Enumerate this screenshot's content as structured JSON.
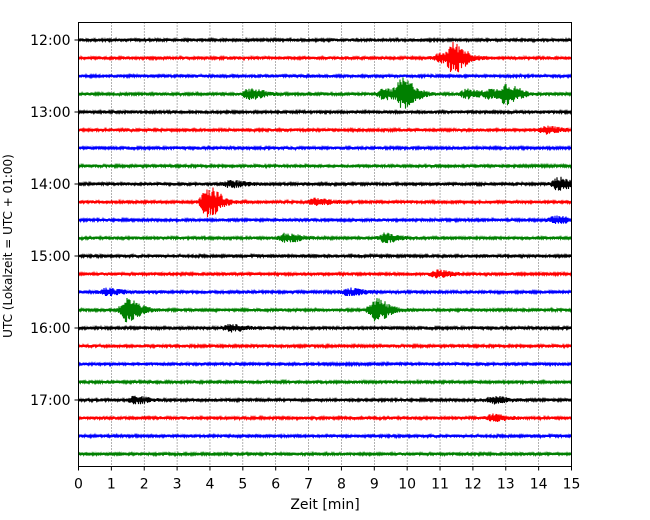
{
  "chart_data": {
    "type": "line",
    "title": "",
    "xlabel": "Zeit  [min]",
    "ylabel": "UTC (Lokalzeit = UTC + 01:00)",
    "xlim": [
      0,
      15
    ],
    "x_ticks": [
      "0",
      "1",
      "2",
      "3",
      "4",
      "5",
      "6",
      "7",
      "8",
      "9",
      "10",
      "11",
      "12",
      "13",
      "14",
      "15"
    ],
    "y_tick_labels": [
      "12:00",
      "13:00",
      "14:00",
      "15:00",
      "16:00",
      "17:00"
    ],
    "grid": "vertical dotted",
    "colors": [
      "#000000",
      "#ff0000",
      "#0000ff",
      "#008000"
    ],
    "traces": [
      {
        "start": "12:00",
        "color": "#000000",
        "events": []
      },
      {
        "start": "12:15",
        "color": "#ff0000",
        "events": [
          {
            "t": 11.4,
            "amp": 13
          },
          {
            "t": 11.0,
            "amp": 4
          }
        ]
      },
      {
        "start": "12:30",
        "color": "#0000ff",
        "events": []
      },
      {
        "start": "12:45",
        "color": "#008000",
        "events": [
          {
            "t": 9.85,
            "amp": 14
          },
          {
            "t": 13.0,
            "amp": 9
          },
          {
            "t": 5.2,
            "amp": 5
          },
          {
            "t": 9.3,
            "amp": 5
          },
          {
            "t": 11.8,
            "amp": 4
          },
          {
            "t": 12.5,
            "amp": 4
          }
        ]
      },
      {
        "start": "13:00",
        "color": "#000000",
        "events": []
      },
      {
        "start": "13:15",
        "color": "#ff0000",
        "events": [
          {
            "t": 14.2,
            "amp": 3
          }
        ]
      },
      {
        "start": "13:30",
        "color": "#0000ff",
        "events": []
      },
      {
        "start": "13:45",
        "color": "#008000",
        "events": []
      },
      {
        "start": "14:00",
        "color": "#000000",
        "events": [
          {
            "t": 14.6,
            "amp": 6
          },
          {
            "t": 4.6,
            "amp": 3
          }
        ]
      },
      {
        "start": "14:15",
        "color": "#ff0000",
        "events": [
          {
            "t": 3.9,
            "amp": 15
          },
          {
            "t": 7.2,
            "amp": 3
          }
        ]
      },
      {
        "start": "14:30",
        "color": "#0000ff",
        "events": [
          {
            "t": 14.5,
            "amp": 3
          }
        ]
      },
      {
        "start": "14:45",
        "color": "#008000",
        "events": [
          {
            "t": 6.3,
            "amp": 4
          },
          {
            "t": 9.3,
            "amp": 4
          }
        ]
      },
      {
        "start": "15:00",
        "color": "#000000",
        "events": []
      },
      {
        "start": "15:15",
        "color": "#ff0000",
        "events": [
          {
            "t": 10.9,
            "amp": 3
          }
        ]
      },
      {
        "start": "15:30",
        "color": "#0000ff",
        "events": [
          {
            "t": 0.85,
            "amp": 3
          },
          {
            "t": 8.2,
            "amp": 3
          }
        ]
      },
      {
        "start": "15:45",
        "color": "#008000",
        "events": [
          {
            "t": 1.45,
            "amp": 11
          },
          {
            "t": 9.0,
            "amp": 11
          }
        ]
      },
      {
        "start": "16:00",
        "color": "#000000",
        "events": [
          {
            "t": 4.6,
            "amp": 3
          }
        ]
      },
      {
        "start": "16:15",
        "color": "#ff0000",
        "events": []
      },
      {
        "start": "16:30",
        "color": "#0000ff",
        "events": []
      },
      {
        "start": "16:45",
        "color": "#008000",
        "events": []
      },
      {
        "start": "17:00",
        "color": "#000000",
        "events": [
          {
            "t": 1.7,
            "amp": 3
          },
          {
            "t": 12.6,
            "amp": 3
          }
        ]
      },
      {
        "start": "17:15",
        "color": "#ff0000",
        "events": [
          {
            "t": 12.6,
            "amp": 3
          }
        ]
      },
      {
        "start": "17:30",
        "color": "#0000ff",
        "events": []
      },
      {
        "start": "17:45",
        "color": "#008000",
        "events": []
      }
    ]
  }
}
